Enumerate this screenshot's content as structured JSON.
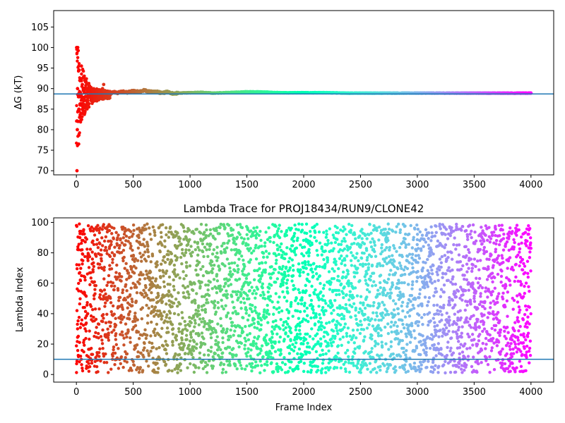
{
  "chart_data": [
    {
      "type": "scatter",
      "title": "",
      "xlabel": "",
      "ylabel": "ΔG (kT)",
      "xlim": [
        -200,
        4200
      ],
      "ylim": [
        69,
        109
      ],
      "xticks": [
        0,
        500,
        1000,
        1500,
        2000,
        2500,
        3000,
        3500,
        4000
      ],
      "xtick_labels": [
        "0",
        "500",
        "1000",
        "1500",
        "2000",
        "2500",
        "3000",
        "3500",
        "4000"
      ],
      "yticks": [
        70,
        75,
        80,
        85,
        90,
        95,
        100,
        105
      ],
      "ytick_labels": [
        "70",
        "75",
        "80",
        "85",
        "90",
        "95",
        "100",
        "105"
      ],
      "hline": 88.7,
      "hline_color": "#1f77b4",
      "colormap": "rainbow (red at frame 0 to violet at frame 4000)",
      "grid": false,
      "series": [
        {
          "x": [
            2,
            5,
            8,
            10,
            12,
            15,
            18,
            20,
            22,
            25,
            28,
            30,
            33,
            36,
            40,
            44,
            48,
            52,
            56,
            60,
            65,
            70,
            75,
            80,
            85,
            90,
            95,
            100,
            110,
            120,
            130,
            140,
            150,
            160,
            170,
            180,
            190,
            200,
            210,
            220,
            230,
            240,
            250,
            260,
            280,
            300,
            330,
            360,
            400,
            450,
            500,
            550,
            600,
            650,
            700,
            750,
            800,
            850,
            900,
            1000,
            1100,
            1200,
            1300,
            1400,
            1500,
            1600,
            1700,
            1800,
            1900,
            2000,
            2200,
            2400,
            2600,
            2800,
            3000,
            3200,
            3400,
            3600,
            3800,
            4000
          ],
          "y": [
            100,
            70,
            80,
            90,
            100,
            82,
            88,
            76.5,
            85,
            94.5,
            83,
            92,
            86,
            89,
            84,
            95.5,
            88,
            91,
            85,
            90,
            87,
            89,
            92,
            86,
            88,
            89,
            90,
            87,
            88,
            89,
            87.5,
            88.5,
            89,
            88,
            88.5,
            87,
            88.5,
            88,
            89.5,
            88,
            90,
            91,
            89.5,
            88.5,
            89,
            88.8,
            89.2,
            88.9,
            89.3,
            89.1,
            89.4,
            89.2,
            89.6,
            89.2,
            89.3,
            88.9,
            89.2,
            88.8,
            88.9,
            89,
            89.1,
            88.9,
            89,
            89.1,
            89.2,
            89.2,
            89.1,
            89,
            89,
            89,
            89,
            88.9,
            88.9,
            88.9,
            88.9,
            88.9,
            88.9,
            88.9,
            88.9,
            88.9
          ]
        }
      ]
    },
    {
      "type": "scatter",
      "title": "Lambda Trace for PROJ18434/RUN9/CLONE42",
      "xlabel": "Frame Index",
      "ylabel": "Lambda Index",
      "xlim": [
        -200,
        4200
      ],
      "ylim": [
        -5,
        103
      ],
      "xticks": [
        0,
        500,
        1000,
        1500,
        2000,
        2500,
        3000,
        3500,
        4000
      ],
      "xtick_labels": [
        "0",
        "500",
        "1000",
        "1500",
        "2000",
        "2500",
        "3000",
        "3500",
        "4000"
      ],
      "yticks": [
        0,
        20,
        40,
        60,
        80,
        100
      ],
      "ytick_labels": [
        "0",
        "20",
        "40",
        "60",
        "80",
        "100"
      ],
      "hline": 10,
      "hline_color": "#1f77b4",
      "colormap": "rainbow (red at frame 0 to violet at frame 4000)",
      "grid": false,
      "point_count": 4000,
      "value_range": [
        1,
        99
      ],
      "sample": {
        "x": [
          0,
          5,
          10,
          20,
          30,
          50,
          100,
          200,
          500,
          1000,
          1500,
          2000,
          2500,
          3000,
          3500,
          4000
        ],
        "y": [
          98,
          42,
          30,
          55,
          67,
          82,
          40,
          95,
          60,
          22,
          12,
          78,
          35,
          64,
          50,
          83
        ]
      }
    }
  ]
}
